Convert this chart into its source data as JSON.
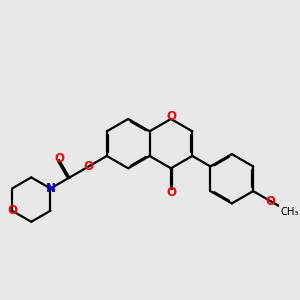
{
  "bg": "#e8e8e8",
  "bc": "#000000",
  "oc": "#ff0000",
  "nc": "#0000cc",
  "lw": 1.6,
  "dbo": 0.022,
  "fs": 8.5,
  "xlim": [
    0,
    6.5
  ],
  "ylim": [
    0,
    5.0
  ]
}
